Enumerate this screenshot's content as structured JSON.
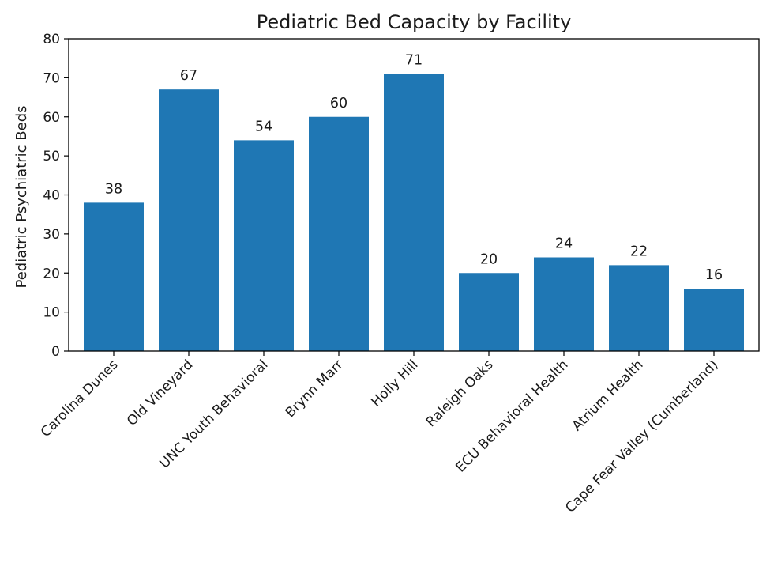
{
  "chart_data": {
    "type": "bar",
    "title": "Pediatric Bed Capacity by Facility",
    "xlabel": "",
    "ylabel": "Pediatric Psychiatric Beds",
    "categories": [
      "Carolina Dunes",
      "Old Vineyard",
      "UNC Youth Behavioral",
      "Brynn Marr",
      "Holly Hill",
      "Raleigh Oaks",
      "ECU Behavioral Health",
      "Atrium Health",
      "Cape Fear Valley (Cumberland)"
    ],
    "values": [
      38,
      67,
      54,
      60,
      71,
      20,
      24,
      22,
      16
    ],
    "data_labels": [
      "38",
      "67",
      "54",
      "60",
      "71",
      "20",
      "24",
      "22",
      "16"
    ],
    "ylim": [
      0,
      80
    ],
    "yticks": [
      0,
      10,
      20,
      30,
      40,
      50,
      60,
      70,
      80
    ],
    "ytick_labels": [
      "0",
      "10",
      "20",
      "30",
      "40",
      "50",
      "60",
      "70",
      "80"
    ],
    "grid": false,
    "legend": "none",
    "colors": {
      "bar": "#1f77b4",
      "axis": "#000000",
      "text": "#1a1a1a"
    }
  }
}
